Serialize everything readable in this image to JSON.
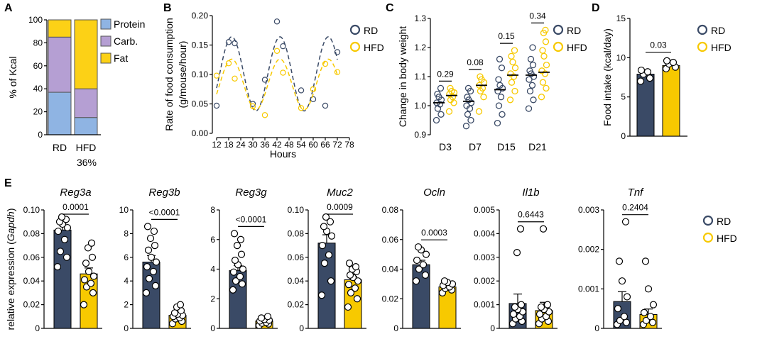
{
  "colors": {
    "RD": "#3a4a66",
    "HFD": "#f7c900",
    "protein": "#8fb4e3",
    "carb": "#b59fd3",
    "fat": "#fcd116"
  },
  "panels": {
    "A": "A",
    "B": "B",
    "C": "C",
    "D": "D",
    "E": "E"
  },
  "legend": {
    "RD": "RD",
    "HFD": "HFD"
  },
  "chart_data": [
    {
      "id": "A",
      "type": "bar",
      "subtype": "stacked",
      "ylabel": "% of Kcal",
      "ylim": [
        0,
        100
      ],
      "yticks": [
        0,
        20,
        40,
        60,
        80,
        100
      ],
      "categories": [
        "RD",
        "HFD"
      ],
      "extra_label": "36%",
      "series": [
        {
          "name": "Protein",
          "values": [
            37,
            15
          ],
          "color": "#8fb4e3"
        },
        {
          "name": "Carb.",
          "values": [
            48,
            25
          ],
          "color": "#b59fd3"
        },
        {
          "name": "Fat",
          "values": [
            15,
            60
          ],
          "color": "#fcd116"
        }
      ]
    },
    {
      "id": "B",
      "type": "scatter",
      "ylabel_lines": [
        "Rate of food consumption",
        "(g/mouse/hour)"
      ],
      "xlabel": "Hours",
      "xlim": [
        12,
        78
      ],
      "ylim": [
        0,
        0.2
      ],
      "xticks": [
        12,
        18,
        24,
        30,
        36,
        42,
        48,
        54,
        60,
        66,
        72,
        78
      ],
      "yticks": [
        0.0,
        0.05,
        0.1,
        0.15,
        0.2
      ],
      "ytick_labels": [
        "0.00",
        "0.05",
        "0.10",
        "0.15",
        "0.20"
      ],
      "series": [
        {
          "name": "RD",
          "x": [
            12,
            18,
            21,
            30,
            36,
            42,
            45,
            54,
            60,
            66,
            72
          ],
          "y": [
            0.047,
            0.155,
            0.153,
            0.05,
            0.091,
            0.19,
            0.148,
            0.073,
            0.058,
            0.047,
            0.138
          ],
          "fit": {
            "mean": 0.101,
            "amp": 0.063,
            "period": 24,
            "peak": 19.5
          }
        },
        {
          "name": "HFD",
          "x": [
            12,
            18,
            21,
            30,
            36,
            42,
            45,
            54,
            60,
            66,
            72
          ],
          "y": [
            0.098,
            0.119,
            0.093,
            0.046,
            0.031,
            0.14,
            0.103,
            0.043,
            0.075,
            0.118,
            0.104
          ],
          "fit": {
            "mean": 0.083,
            "amp": 0.043,
            "period": 24,
            "peak": 19.5
          }
        }
      ]
    },
    {
      "id": "C",
      "type": "scatter",
      "ylabel": "Change in body weight",
      "categories": [
        "D3",
        "D7",
        "D15",
        "D21"
      ],
      "ylim": [
        0.9,
        1.3
      ],
      "yticks": [
        0.9,
        1.0,
        1.1,
        1.2,
        1.3
      ],
      "ytick_labels": [
        "0.9",
        "1.0",
        "1.1",
        "1.2",
        "1.3"
      ],
      "pvalues": [
        "0.29",
        "0.08",
        "0.15",
        "0.34"
      ],
      "groups": [
        {
          "RD": [
            0.95,
            0.97,
            0.99,
            1.005,
            1.01,
            1.02,
            1.03,
            1.04,
            1.06
          ],
          "RD_mean": 1.01,
          "HFD": [
            0.98,
            1.01,
            1.02,
            1.03,
            1.04,
            1.045,
            1.05,
            1.06
          ],
          "HFD_mean": 1.035
        },
        {
          "RD": [
            0.93,
            0.95,
            0.97,
            0.99,
            1.0,
            1.01,
            1.02,
            1.03,
            1.05,
            1.06
          ],
          "RD_mean": 1.015,
          "HFD": [
            0.98,
            1.03,
            1.05,
            1.06,
            1.07,
            1.08,
            1.09,
            1.1
          ],
          "HFD_mean": 1.07
        },
        {
          "RD": [
            0.94,
            0.97,
            1.0,
            1.03,
            1.05,
            1.06,
            1.07,
            1.09,
            1.13,
            1.16
          ],
          "RD_mean": 1.055,
          "HFD": [
            1.02,
            1.05,
            1.08,
            1.1,
            1.11,
            1.13,
            1.15,
            1.17,
            1.19
          ],
          "HFD_mean": 1.105
        },
        {
          "RD": [
            0.99,
            1.02,
            1.05,
            1.07,
            1.09,
            1.1,
            1.11,
            1.12,
            1.14,
            1.16,
            1.2
          ],
          "RD_mean": 1.105,
          "HFD": [
            1.03,
            1.06,
            1.08,
            1.11,
            1.12,
            1.14,
            1.17,
            1.19,
            1.22,
            1.25,
            1.26
          ],
          "HFD_mean": 1.115
        }
      ]
    },
    {
      "id": "D",
      "type": "bar",
      "ylabel": "Food intake (kcal/day)",
      "ylim": [
        0,
        15
      ],
      "yticks": [
        0,
        5,
        10,
        15
      ],
      "pvalue": "0.03",
      "RD": {
        "mean": 7.9,
        "sem": 0.3,
        "points": [
          7.0,
          7.4,
          7.9,
          8.2,
          8.4
        ]
      },
      "HFD": {
        "mean": 9.0,
        "sem": 0.25,
        "points": [
          8.6,
          8.8,
          9.2,
          9.4,
          9.6
        ]
      }
    },
    {
      "id": "E",
      "type": "bar",
      "ylabel": "relative expression (Gapdh)",
      "ylabel_main": "relative expression (",
      "ylabel_italic": "Gapdh",
      "ylabel_end": ")",
      "genes": [
        {
          "name": "Reg3a",
          "ylim": [
            0,
            0.1
          ],
          "yticks": [
            "0",
            "0.02",
            "0.04",
            "0.06",
            "0.08",
            "0.10"
          ],
          "pvalue": "0.0001",
          "RD": {
            "mean": 0.083,
            "sem": 0.006,
            "points": [
              0.052,
              0.06,
              0.065,
              0.075,
              0.082,
              0.085,
              0.088,
              0.09,
              0.092,
              0.094
            ]
          },
          "HFD": {
            "mean": 0.046,
            "sem": 0.005,
            "points": [
              0.02,
              0.03,
              0.035,
              0.038,
              0.041,
              0.044,
              0.048,
              0.055,
              0.06,
              0.068,
              0.072
            ]
          }
        },
        {
          "name": "Reg3b",
          "ylim": [
            0,
            10
          ],
          "yticks": [
            "0",
            "2",
            "4",
            "6",
            "8",
            "10"
          ],
          "pvalue": "<0.0001",
          "RD": {
            "mean": 5.6,
            "sem": 0.55,
            "points": [
              3.0,
              3.6,
              4.2,
              4.8,
              5.2,
              5.6,
              6.0,
              6.6,
              7.0,
              7.6,
              8.2,
              8.6
            ]
          },
          "HFD": {
            "mean": 1.1,
            "sem": 0.2,
            "points": [
              0.4,
              0.6,
              0.8,
              0.9,
              1.0,
              1.1,
              1.2,
              1.3,
              1.5,
              1.8,
              2.0
            ]
          }
        },
        {
          "name": "Reg3g",
          "ylim": [
            0,
            8
          ],
          "yticks": [
            "0",
            "2",
            "4",
            "6",
            "8"
          ],
          "pvalue": "<0.0001",
          "RD": {
            "mean": 3.9,
            "sem": 0.35,
            "points": [
              2.6,
              3.0,
              3.2,
              3.5,
              3.8,
              4.0,
              4.3,
              4.6,
              5.0,
              5.6,
              6.0,
              6.4
            ]
          },
          "HFD": {
            "mean": 0.5,
            "sem": 0.08,
            "points": [
              0.2,
              0.3,
              0.35,
              0.4,
              0.5,
              0.55,
              0.6,
              0.7,
              0.8
            ]
          }
        },
        {
          "name": "Muc2",
          "ylim": [
            0,
            0.1
          ],
          "yticks": [
            "0",
            "0.02",
            "0.04",
            "0.06",
            "0.08",
            "0.10"
          ],
          "pvalue": "0.0009",
          "RD": {
            "mean": 0.072,
            "sem": 0.007,
            "points": [
              0.028,
              0.04,
              0.055,
              0.062,
              0.07,
              0.078,
              0.082,
              0.086,
              0.09,
              0.094
            ]
          },
          "HFD": {
            "mean": 0.041,
            "sem": 0.003,
            "points": [
              0.018,
              0.025,
              0.03,
              0.034,
              0.037,
              0.04,
              0.043,
              0.045,
              0.048,
              0.05,
              0.052,
              0.055
            ]
          }
        },
        {
          "name": "Ocln",
          "ylim": [
            0,
            0.08
          ],
          "yticks": [
            "0",
            "0.02",
            "0.04",
            "0.06",
            "0.08"
          ],
          "pvalue": "0.0003",
          "RD": {
            "mean": 0.043,
            "sem": 0.003,
            "points": [
              0.032,
              0.036,
              0.04,
              0.043,
              0.046,
              0.05,
              0.053,
              0.055
            ]
          },
          "HFD": {
            "mean": 0.028,
            "sem": 0.001,
            "points": [
              0.024,
              0.026,
              0.027,
              0.028,
              0.029,
              0.03,
              0.031,
              0.032
            ]
          }
        },
        {
          "name": "Il1b",
          "ylim": [
            0,
            0.005
          ],
          "yticks": [
            "0",
            "0.001",
            "0.002",
            "0.003",
            "0.004",
            "0.005"
          ],
          "pvalue": "0.6443",
          "RD": {
            "mean": 0.00105,
            "sem": 0.0004,
            "points": [
              0.0002,
              0.0003,
              0.0004,
              0.0005,
              0.0006,
              0.0007,
              0.0008,
              0.0009,
              0.001,
              0.0032,
              0.0042
            ]
          },
          "HFD": {
            "mean": 0.00075,
            "sem": 0.00035,
            "points": [
              0.0002,
              0.0003,
              0.0004,
              0.0005,
              0.0006,
              0.0007,
              0.0008,
              0.0009,
              0.001,
              0.0042
            ]
          }
        },
        {
          "name": "Tnf",
          "ylim": [
            0,
            0.003
          ],
          "yticks": [
            "0",
            "0.001",
            "0.002",
            "0.003"
          ],
          "pvalue": "0.2404",
          "RD": {
            "mean": 0.00068,
            "sem": 0.00025,
            "points": [
              0.0001,
              0.00015,
              0.0002,
              0.0003,
              0.0005,
              0.0008,
              0.0012,
              0.0017,
              0.0027
            ]
          },
          "HFD": {
            "mean": 0.00035,
            "sem": 0.00014,
            "points": [
              0.0001,
              0.00015,
              0.0002,
              0.0003,
              0.0004,
              0.0006,
              0.001,
              0.0017
            ]
          }
        }
      ]
    }
  ]
}
